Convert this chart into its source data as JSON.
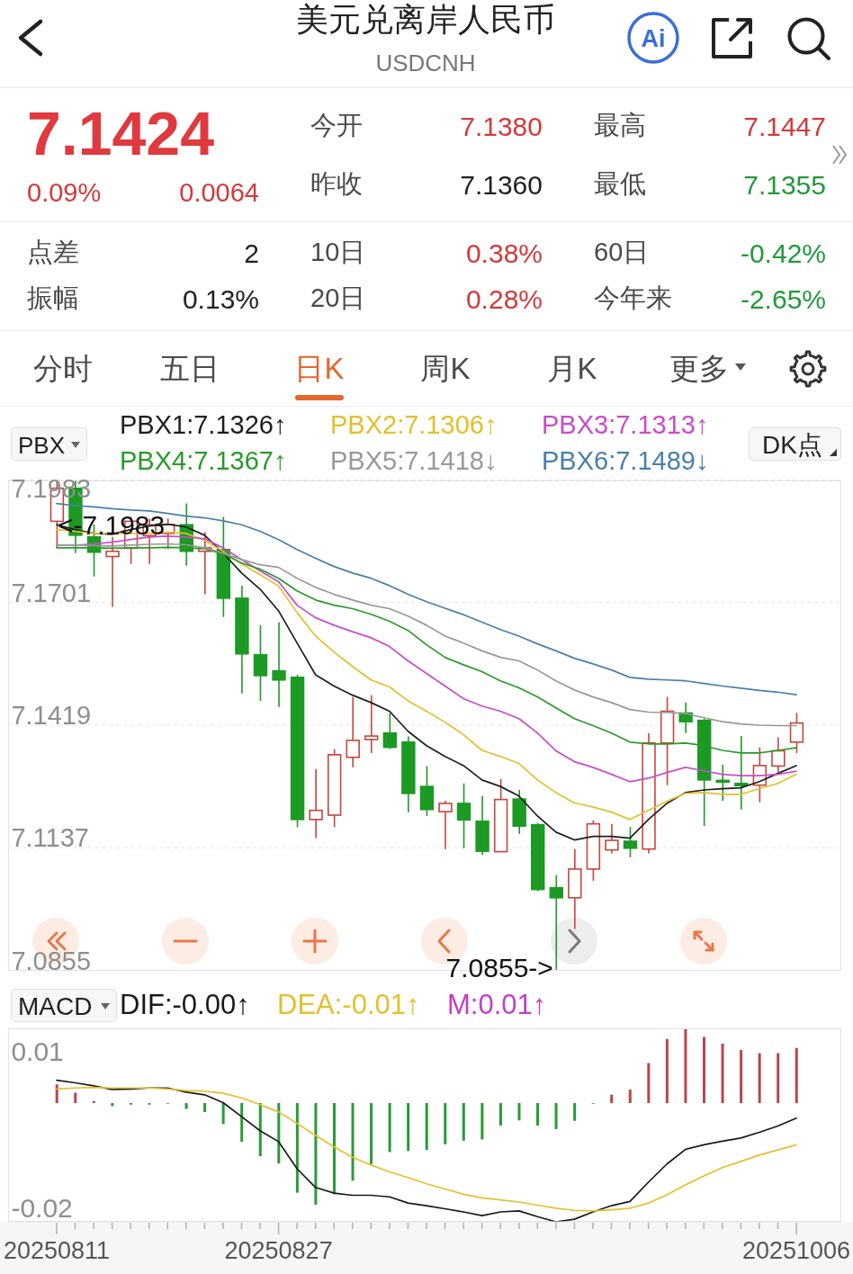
{
  "chart_data": [
    {
      "type": "other",
      "title": "美元兑离岸人民币",
      "subtitle": "USDCNH",
      "annotations": [
        "7.1424",
        "0.09%",
        "0.0064",
        "今开",
        "7.1380",
        "最高",
        "7.1447",
        "昨收",
        "7.1360",
        "最低",
        "7.1355",
        "点差",
        "2",
        "10日",
        "0.38%",
        "60日",
        "-0.42%",
        "振幅",
        "0.13%",
        "20日",
        "0.28%",
        "今年来",
        "-2.65%",
        "分时",
        "五日",
        "日K",
        "周K",
        "月K",
        "更多",
        "Ai"
      ]
    },
    {
      "type": "candlestick",
      "legend_title": "PBX",
      "categories": [
        null,
        null,
        null,
        null,
        null,
        null,
        null,
        null,
        null,
        null,
        null,
        null,
        null,
        null,
        null,
        null,
        null,
        null,
        null,
        null,
        null,
        null,
        null,
        null,
        null,
        null,
        null,
        null,
        null,
        null,
        null,
        null,
        null,
        null,
        null,
        null,
        null,
        null,
        null,
        null,
        null
      ],
      "ohlc": [
        [
          7.1888,
          7.1983,
          7.1827,
          7.1964
        ],
        [
          7.1964,
          7.1981,
          7.1815,
          7.1856
        ],
        [
          7.1852,
          7.1881,
          7.1761,
          7.1817
        ],
        [
          7.1807,
          7.1852,
          7.1691,
          7.1819
        ],
        [
          7.1826,
          7.1898,
          7.179,
          7.1888
        ],
        [
          7.1855,
          7.1894,
          7.179,
          7.188
        ],
        [
          7.186,
          7.1894,
          7.1825,
          7.1881
        ],
        [
          7.188,
          7.1929,
          7.1786,
          7.1819
        ],
        [
          7.1819,
          7.1863,
          7.172,
          7.1827
        ],
        [
          7.1823,
          7.1898,
          7.1668,
          7.1711
        ],
        [
          7.1711,
          7.174,
          7.1492,
          7.1583
        ],
        [
          7.1581,
          7.1649,
          7.1475,
          7.1533
        ],
        [
          7.1544,
          7.1656,
          7.1461,
          7.1523
        ],
        [
          7.1529,
          7.1535,
          7.1184,
          7.1202
        ],
        [
          7.1202,
          7.1318,
          7.1159,
          7.1223
        ],
        [
          7.1212,
          7.1364,
          7.1184,
          7.1351
        ],
        [
          7.1345,
          7.1484,
          7.1322,
          7.1384
        ],
        [
          7.1386,
          7.1488,
          7.1355,
          7.1394
        ],
        [
          7.1401,
          7.1447,
          7.1364,
          7.1368
        ],
        [
          7.138,
          7.1393,
          7.1219,
          7.1262
        ],
        [
          7.1278,
          7.1325,
          7.121,
          7.1225
        ],
        [
          7.122,
          7.1245,
          7.1134,
          7.1239
        ],
        [
          7.1239,
          7.1285,
          7.1136,
          7.1201
        ],
        [
          7.1198,
          7.1256,
          7.1121,
          7.1129
        ],
        [
          7.1128,
          7.1295,
          7.1128,
          7.1248
        ],
        [
          7.1249,
          7.127,
          7.1169,
          7.1187
        ],
        [
          7.119,
          7.1194,
          7.1037,
          7.1041
        ],
        [
          7.1045,
          7.1074,
          7.0855,
          7.1022
        ],
        [
          7.1022,
          7.1134,
          7.095,
          7.1088
        ],
        [
          7.1088,
          7.12,
          7.1061,
          7.1192
        ],
        [
          7.1132,
          7.1192,
          7.1124,
          7.1154
        ],
        [
          7.1152,
          7.1185,
          7.1115,
          7.1136
        ],
        [
          7.1134,
          7.1401,
          7.1124,
          7.1378
        ],
        [
          7.1378,
          7.1484,
          7.1281,
          7.1451
        ],
        [
          7.1447,
          7.1471,
          7.1401,
          7.1427
        ],
        [
          7.143,
          7.1434,
          7.1187,
          7.1293
        ],
        [
          7.1292,
          7.1328,
          7.1245,
          7.1288
        ],
        [
          7.1285,
          7.1394,
          7.1225,
          7.128
        ],
        [
          7.1281,
          7.1368,
          7.1242,
          7.1326
        ],
        [
          7.1325,
          7.1391,
          7.131,
          7.136
        ],
        [
          7.138,
          7.1447,
          7.1355,
          7.1424
        ]
      ],
      "colors": [
        "#c4463d",
        "#1c9a24",
        "#1c9a24",
        "#c4463d",
        "#c4463d",
        "#c4463d",
        "#c4463d",
        "#1c9a24",
        "#c4463d",
        "#1c9a24",
        "#1c9a24",
        "#1c9a24",
        "#1c9a24",
        "#1c9a24",
        "#c4463d",
        "#c4463d",
        "#c4463d",
        "#c4463d",
        "#1c9a24",
        "#1c9a24",
        "#1c9a24",
        "#c4463d",
        "#1c9a24",
        "#1c9a24",
        "#c4463d",
        "#1c9a24",
        "#1c9a24",
        "#1c9a24",
        "#c4463d",
        "#c4463d",
        "#c4463d",
        "#1c9a24",
        "#c4463d",
        "#c4463d",
        "#1c9a24",
        "#1c9a24",
        "#1c9a24",
        "#1c9a24",
        "#c4463d",
        "#c4463d",
        "#c4463d"
      ],
      "series": [
        {
          "name": "PBX1:7.1326↑",
          "type": "line",
          "color": "#1e1e1e",
          "values": [
            7.188,
            7.1869,
            7.186,
            7.1858,
            7.1869,
            7.1877,
            7.1881,
            7.1875,
            7.1856,
            7.1815,
            7.1769,
            7.1732,
            7.1682,
            7.1608,
            7.1535,
            7.1509,
            7.1488,
            7.1471,
            7.1451,
            7.1405,
            7.1372,
            7.1347,
            7.1326,
            7.1293,
            7.1278,
            7.1256,
            7.121,
            7.1173,
            7.1155,
            7.1163,
            7.1163,
            7.1159,
            7.1202,
            7.1239,
            7.1264,
            7.127,
            7.1273,
            7.1275,
            7.1289,
            7.1308,
            7.1326
          ]
        },
        {
          "name": "PBX2:7.1306↑",
          "type": "line",
          "color": "#e3c02c",
          "values": [
            7.1869,
            7.1865,
            7.186,
            7.186,
            7.186,
            7.186,
            7.1863,
            7.186,
            7.1844,
            7.1819,
            7.179,
            7.1765,
            7.1739,
            7.1678,
            7.1624,
            7.1587,
            7.1554,
            7.1523,
            7.1507,
            7.1475,
            7.1451,
            7.1426,
            7.1397,
            7.1361,
            7.1347,
            7.1331,
            7.1293,
            7.1264,
            7.124,
            7.1231,
            7.1219,
            7.1202,
            7.1223,
            7.1244,
            7.1262,
            7.1264,
            7.126,
            7.126,
            7.1273,
            7.1285,
            7.1306
          ]
        },
        {
          "name": "PBX3:7.1313↑",
          "type": "line",
          "color": "#c94cc9",
          "values": [
            7.1833,
            7.1833,
            7.1836,
            7.184,
            7.1846,
            7.1852,
            7.1854,
            7.1852,
            7.1848,
            7.1827,
            7.18,
            7.1774,
            7.1749,
            7.1695,
            7.1666,
            7.1649,
            7.1634,
            7.162,
            7.16,
            7.1567,
            7.1538,
            7.1509,
            7.148,
            7.1463,
            7.1451,
            7.1434,
            7.1401,
            7.136,
            7.1335,
            7.1322,
            7.1306,
            7.1289,
            7.1297,
            7.131,
            7.1322,
            7.1314,
            7.1306,
            7.1303,
            7.1303,
            7.1306,
            7.1313
          ]
        },
        {
          "name": "PBX4:7.1367↑",
          "type": "line",
          "color": "#2a9a2a",
          "values": [
            7.1827,
            7.1827,
            7.1827,
            7.1826,
            7.1827,
            7.1827,
            7.1828,
            7.1827,
            7.1825,
            7.1813,
            7.1792,
            7.1778,
            7.1757,
            7.1728,
            7.1707,
            7.1695,
            7.1687,
            7.1674,
            7.1658,
            7.1637,
            7.1604,
            7.1575,
            7.1558,
            7.1542,
            7.1521,
            7.1505,
            7.1484,
            7.1459,
            7.1434,
            7.1418,
            7.1401,
            7.138,
            7.1376,
            7.1376,
            7.1378,
            7.1372,
            7.1361,
            7.1355,
            7.1355,
            7.1361,
            7.1367
          ]
        },
        {
          "name": "PBX5:7.1418↓",
          "type": "line",
          "color": "#999999",
          "values": [
            7.1833,
            7.1833,
            7.1832,
            7.1831,
            7.1833,
            7.1835,
            7.1836,
            7.1834,
            7.1827,
            7.1815,
            7.18,
            7.1788,
            7.1782,
            7.1757,
            7.1736,
            7.172,
            7.1707,
            7.1695,
            7.1687,
            7.167,
            7.1649,
            7.1624,
            7.1608,
            7.159,
            7.1575,
            7.1567,
            7.1546,
            7.1521,
            7.15,
            7.1484,
            7.1471,
            7.1455,
            7.1449,
            7.1448,
            7.1446,
            7.1436,
            7.1427,
            7.1422,
            7.1419,
            7.1418,
            7.1418
          ]
        },
        {
          "name": "PBX6:7.1489↓",
          "type": "line",
          "color": "#4a7fa8",
          "values": [
            7.1929,
            7.1924,
            7.1921,
            7.1917,
            7.1914,
            7.1912,
            7.1906,
            7.19,
            7.1896,
            7.1889,
            7.188,
            7.1865,
            7.1846,
            7.1823,
            7.1803,
            7.1784,
            7.1769,
            7.1757,
            7.174,
            7.172,
            7.1703,
            7.1688,
            7.1673,
            7.1656,
            7.1639,
            7.1624,
            7.1606,
            7.159,
            7.1573,
            7.156,
            7.1546,
            7.1529,
            7.1525,
            7.1523,
            7.1521,
            7.1515,
            7.1509,
            7.1504,
            7.1499,
            7.1495,
            7.1489
          ]
        }
      ],
      "ylim": [
        7.0855,
        7.1983
      ],
      "yticks": [
        7.0855,
        7.1137,
        7.1419,
        7.1701,
        7.1983
      ],
      "grid": "y",
      "legend": "top",
      "tick_labels": "y",
      "annotations": [
        "<-7.1983",
        "7.0855->",
        "DK点"
      ]
    },
    {
      "type": "line",
      "legend_title": "MACD",
      "categories": [
        "20250811",
        null,
        null,
        null,
        null,
        null,
        null,
        null,
        null,
        null,
        null,
        null,
        "20250827",
        null,
        null,
        null,
        null,
        null,
        null,
        null,
        null,
        null,
        null,
        null,
        null,
        null,
        null,
        null,
        null,
        null,
        null,
        null,
        null,
        null,
        null,
        null,
        null,
        null,
        null,
        null,
        "20251006"
      ],
      "series": [
        {
          "name": "DIF:-0.00↑",
          "color": "#1a1a1a",
          "values": [
            0.0044,
            0.0039,
            0.0033,
            0.0026,
            0.0027,
            0.0029,
            0.0029,
            0.0021,
            0.0016,
            0.0001,
            -0.0026,
            -0.0053,
            -0.0074,
            -0.0126,
            -0.0162,
            -0.0173,
            -0.0177,
            -0.0177,
            -0.018,
            -0.0192,
            -0.0197,
            -0.0203,
            -0.0209,
            -0.0216,
            -0.0209,
            -0.0207,
            -0.0218,
            -0.0228,
            -0.0223,
            -0.0209,
            -0.0197,
            -0.0189,
            -0.0152,
            -0.0117,
            -0.0089,
            -0.008,
            -0.0073,
            -0.0067,
            -0.0056,
            -0.0044,
            -0.0029
          ]
        },
        {
          "name": "DEA:-0.01↑",
          "color": "#e3c02c",
          "values": [
            0.0027,
            0.0029,
            0.003,
            0.0029,
            0.0029,
            0.0029,
            0.0027,
            0.0024,
            0.0023,
            0.0019,
            0.001,
            -0.0003,
            -0.0017,
            -0.0039,
            -0.0062,
            -0.0084,
            -0.0104,
            -0.0119,
            -0.0132,
            -0.0143,
            -0.0155,
            -0.0165,
            -0.0175,
            -0.0182,
            -0.0186,
            -0.019,
            -0.0196,
            -0.0202,
            -0.0206,
            -0.0207,
            -0.0205,
            -0.0202,
            -0.0192,
            -0.0176,
            -0.0157,
            -0.014,
            -0.0124,
            -0.0112,
            -0.01,
            -0.009,
            -0.008
          ]
        },
        {
          "name": "M:0.01↑",
          "type": "bar",
          "color": "#c23fc6",
          "colors": [
            "#b9464b",
            "#b9464b",
            "#b9464b",
            "#2a9a35",
            "#2a9a35",
            "#2a9a35",
            "#2a9a35",
            "#2a9a35",
            "#2a9a35",
            "#2a9a35",
            "#2a9a35",
            "#2a9a35",
            "#2a9a35",
            "#2a9a35",
            "#2a9a35",
            "#2a9a35",
            "#2a9a35",
            "#2a9a35",
            "#2a9a35",
            "#2a9a35",
            "#2a9a35",
            "#2a9a35",
            "#2a9a35",
            "#2a9a35",
            "#2a9a35",
            "#2a9a35",
            "#2a9a35",
            "#2a9a35",
            "#2a9a35",
            "#2a9a35",
            "#b9464b",
            "#b9464b",
            "#b9464b",
            "#b9464b",
            "#b9464b",
            "#b9464b",
            "#b9464b",
            "#b9464b",
            "#b9464b",
            "#b9464b",
            "#b9464b"
          ],
          "values": [
            0.0036,
            0.002,
            0.0004,
            -0.0006,
            -0.0003,
            -0.0003,
            -0.0001,
            -0.0011,
            -0.0017,
            -0.004,
            -0.0074,
            -0.0102,
            -0.0116,
            -0.0172,
            -0.0195,
            -0.0175,
            -0.0149,
            -0.0117,
            -0.0094,
            -0.0092,
            -0.009,
            -0.0079,
            -0.0072,
            -0.007,
            -0.0043,
            -0.0033,
            -0.0043,
            -0.005,
            -0.0034,
            -0.0001,
            0.0016,
            0.0026,
            0.0077,
            0.0123,
            0.0142,
            0.0127,
            0.0114,
            0.0102,
            0.0096,
            0.0096,
            0.0106
          ]
        }
      ],
      "ylim": [
        -0.0228,
        0.0143
      ],
      "yticks": [
        -0.02,
        0.01
      ],
      "legend": "top left"
    }
  ]
}
